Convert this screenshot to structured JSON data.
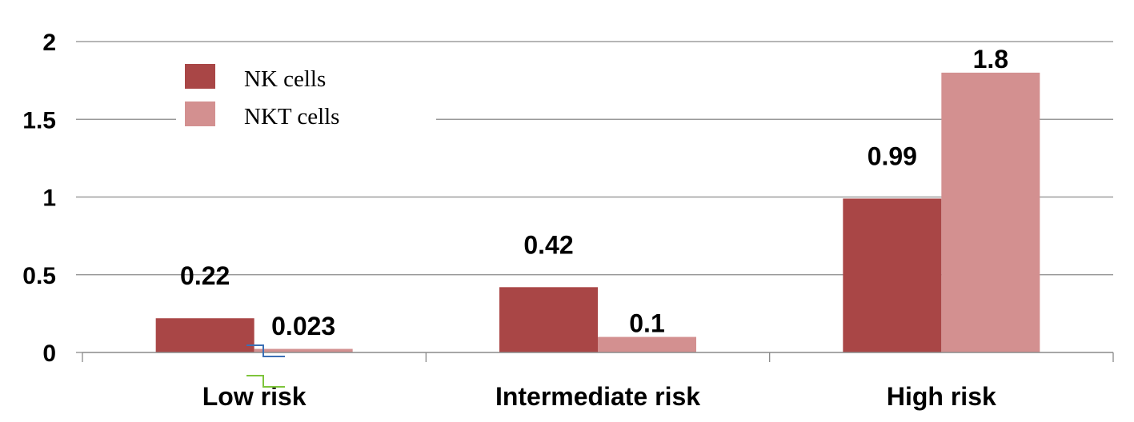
{
  "chart_data": {
    "type": "bar",
    "categories": [
      "Low risk",
      "Intermediate risk",
      "High risk"
    ],
    "series": [
      {
        "name": "NK cells",
        "values": [
          0.22,
          0.42,
          0.99
        ],
        "labels": [
          "0.22",
          "0.42",
          "0.99"
        ],
        "color": "#a94646"
      },
      {
        "name": "NKT cells",
        "values": [
          0.023,
          0.1,
          1.8
        ],
        "labels": [
          "0.023",
          "0.1",
          "1.8"
        ],
        "color": "#d39090"
      }
    ],
    "yticks": [
      "0",
      "0.5",
      "1",
      "1.5",
      "2"
    ],
    "ylim": [
      0,
      2
    ],
    "grid": true,
    "legend": "top-left",
    "title": "",
    "xlabel": "",
    "ylabel": ""
  }
}
